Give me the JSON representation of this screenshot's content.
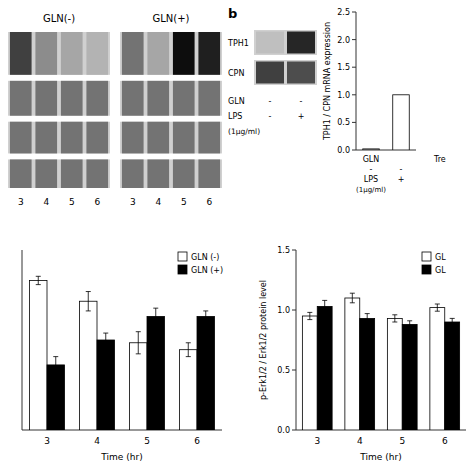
{
  "chart_data": [
    {
      "type": "heatmap",
      "annotations": [
        "GLN(-)",
        "GLN(+)"
      ],
      "categories": [
        "3",
        "4",
        "5",
        "6",
        "3",
        "4",
        "5",
        "6"
      ],
      "series": [
        {
          "values": [
            0.75,
            0.45,
            0.35,
            0.3,
            0.55,
            0.35,
            0.95,
            0.88
          ]
        },
        {
          "values": [
            0.55,
            0.55,
            0.55,
            0.55,
            0.55,
            0.55,
            0.55,
            0.55
          ]
        },
        {
          "values": [
            0.55,
            0.55,
            0.55,
            0.55,
            0.55,
            0.55,
            0.55,
            0.55
          ]
        },
        {
          "values": [
            0.55,
            0.55,
            0.55,
            0.55,
            0.55,
            0.55,
            0.55,
            0.55
          ]
        }
      ]
    },
    {
      "type": "heatmap",
      "annotations": [
        "b",
        "GLN",
        "-",
        "-",
        "LPS",
        "-",
        "+",
        "(1μg/ml)"
      ],
      "series": [
        {
          "name": "TPH1",
          "values": [
            0.25,
            0.85
          ]
        },
        {
          "name": "CPN",
          "values": [
            0.75,
            0.7
          ]
        }
      ]
    },
    {
      "type": "bar",
      "ylabel": "TPH1 / CPN mRNA expression",
      "annotations": [
        "GLN",
        "-",
        "-",
        "LPS",
        "(1μg/ml)",
        "+",
        "Tre"
      ],
      "categories": [
        null,
        null
      ],
      "values": [
        0.02,
        1.0
      ],
      "colors": [
        "white",
        "white"
      ],
      "ylim": [
        0,
        2.5
      ],
      "yticks": [
        {
          "value": 0,
          "label": "0.0"
        },
        0.5,
        {
          "value": 1,
          "label": "1.0"
        },
        1.5,
        {
          "value": 2,
          "label": "2.0"
        },
        2.5
      ],
      "tick_labels": "y"
    },
    {
      "type": "bar",
      "xlabel": "Time (hr)",
      "categories": [
        "3",
        "4",
        "5",
        "6"
      ],
      "series": [
        {
          "name": "GLN (-)",
          "color": "white",
          "values": [
            1.08,
            0.93,
            0.63,
            0.58
          ],
          "errors": [
            0.03,
            0.07,
            0.08,
            0.05
          ]
        },
        {
          "name": "GLN (+)",
          "color": "black",
          "values": [
            0.47,
            0.65,
            0.82,
            0.82
          ],
          "errors": [
            0.06,
            0.05,
            0.06,
            0.04
          ]
        }
      ],
      "ylim": [
        0,
        1.3
      ],
      "tick_labels": "x",
      "legend": "upper right"
    },
    {
      "type": "bar",
      "xlabel": "Time (hr)",
      "ylabel": "p-Erk1/2 / Erk1/2 protein level",
      "categories": [
        "3",
        "4",
        "5",
        "6"
      ],
      "series": [
        {
          "name": "GL",
          "color": "white",
          "values": [
            0.95,
            1.1,
            0.93,
            1.02
          ],
          "errors": [
            0.03,
            0.04,
            0.03,
            0.03
          ]
        },
        {
          "name": "GL",
          "color": "black",
          "values": [
            1.03,
            0.93,
            0.88,
            0.9
          ],
          "errors": [
            0.05,
            0.04,
            0.03,
            0.03
          ]
        }
      ],
      "ylim": [
        0,
        1.5
      ],
      "yticks": [
        {
          "value": 0,
          "label": "0.0"
        },
        0.5,
        {
          "value": 1,
          "label": "1.0"
        },
        1.5
      ],
      "legend": "upper right"
    }
  ]
}
